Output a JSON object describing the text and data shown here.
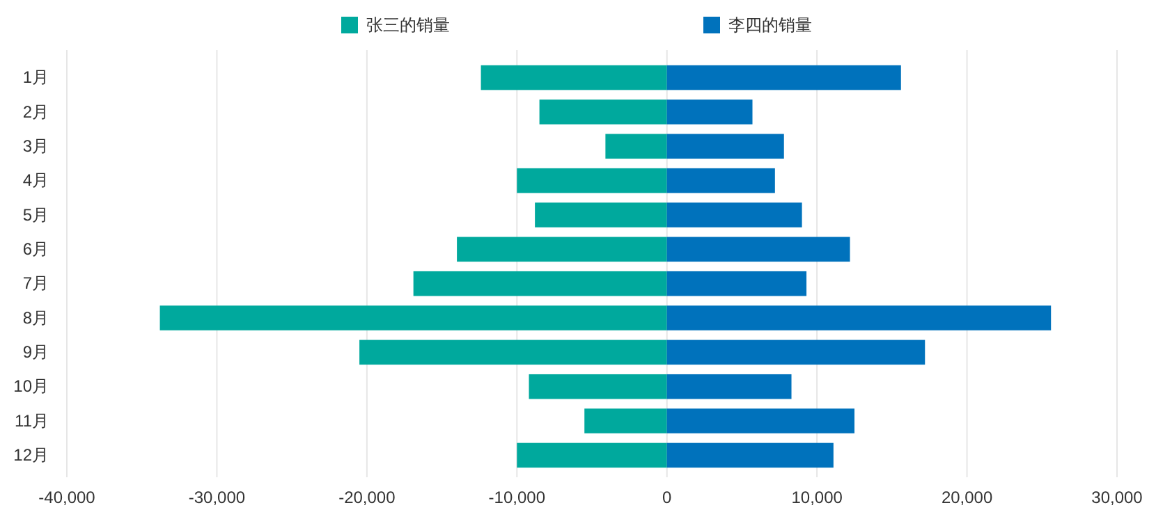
{
  "chart_data": {
    "type": "bar",
    "orientation": "horizontal",
    "stacked": true,
    "categories": [
      "1月",
      "2月",
      "3月",
      "4月",
      "5月",
      "6月",
      "7月",
      "8月",
      "9月",
      "10月",
      "11月",
      "12月"
    ],
    "series": [
      {
        "name": "张三的销量",
        "color": "#00a99d",
        "values": [
          -12400,
          -8500,
          -4100,
          -10000,
          -8800,
          -14000,
          -16900,
          -33800,
          -20500,
          -9200,
          -5500,
          -10000
        ]
      },
      {
        "name": "李四的销量",
        "color": "#0072bc",
        "values": [
          15600,
          5700,
          7800,
          7200,
          9000,
          12200,
          9300,
          25600,
          17200,
          8300,
          12500,
          11100
        ]
      }
    ],
    "xlim": [
      -40000,
      30000
    ],
    "xticks": [
      {
        "value": -40000,
        "label": "-40,000"
      },
      {
        "value": -30000,
        "label": "-30,000"
      },
      {
        "value": -20000,
        "label": "-20,000"
      },
      {
        "value": -10000,
        "label": "-10,000"
      },
      0,
      {
        "value": 10000,
        "label": "10,000"
      },
      {
        "value": 20000,
        "label": "20,000"
      },
      {
        "value": 30000,
        "label": "30,000"
      }
    ],
    "grid": "x",
    "legend": "top"
  }
}
